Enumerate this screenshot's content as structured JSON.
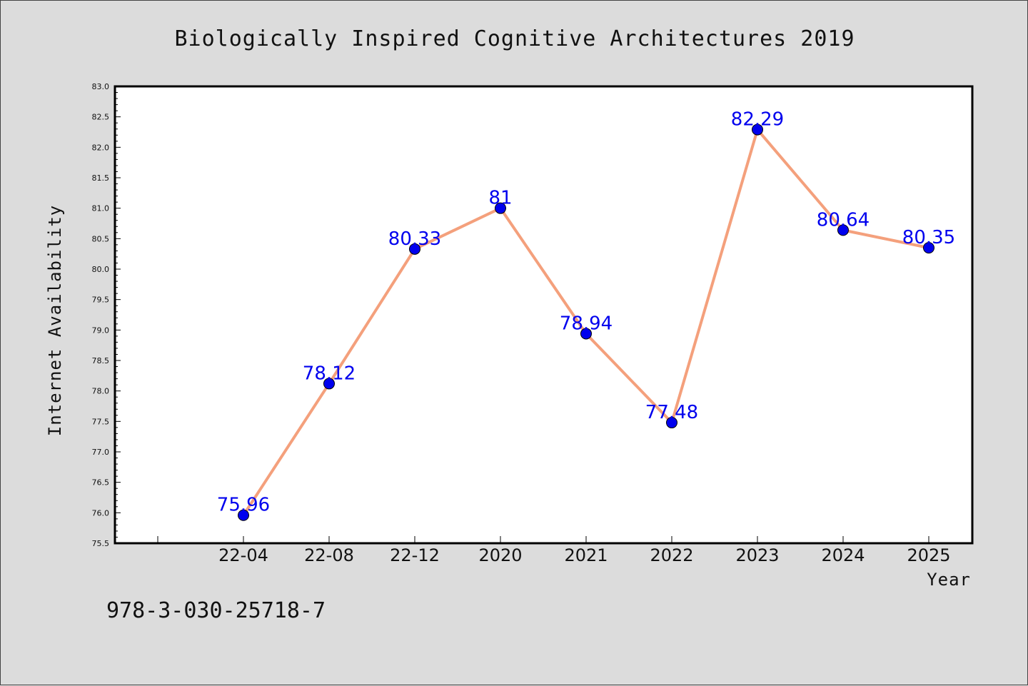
{
  "chart_data": {
    "type": "line",
    "title": "Biologically Inspired Cognitive Architectures 2019",
    "xlabel": "Year",
    "ylabel": "Internet Availability",
    "categories": [
      "22-04",
      "22-08",
      "22-12",
      "2020",
      "2021",
      "2022",
      "2023",
      "2024",
      "2025"
    ],
    "values": [
      75.96,
      78.12,
      80.33,
      81,
      78.94,
      77.48,
      82.29,
      80.64,
      80.35
    ],
    "data_labels": [
      "75.96",
      "78.12",
      "80.33",
      "81",
      "78.94",
      "77.48",
      "82.29",
      "80.64",
      "80.35"
    ],
    "ylim": [
      75.5,
      83.0
    ],
    "yticks": [
      "75.5",
      "76.0",
      "76.5",
      "77.0",
      "77.5",
      "78.0",
      "78.5",
      "79.0",
      "79.5",
      "80.0",
      "80.5",
      "81.0",
      "81.5",
      "82.0",
      "82.5",
      "83.0"
    ],
    "grid": false,
    "line_color": "#f4a07c",
    "marker_color": "#0000ee",
    "label_color": "#0000ee",
    "plot_background": "#ffffff",
    "page_background": "#dcdcdc"
  },
  "footer": {
    "isbn": "978-3-030-25718-7"
  }
}
